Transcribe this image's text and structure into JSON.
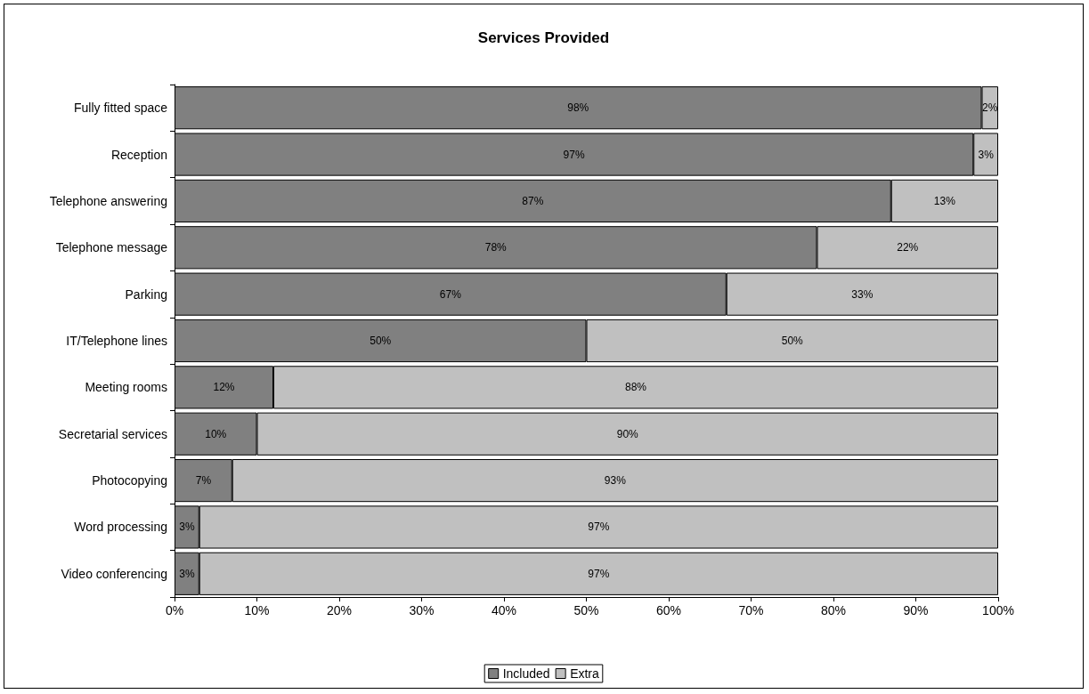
{
  "chart_data": {
    "type": "bar",
    "title": "Services Provided",
    "orientation": "horizontal",
    "stacked": true,
    "categories": [
      "Fully fitted space",
      "Reception",
      "Telephone answering",
      "Telephone message",
      "Parking",
      "IT/Telephone lines",
      "Meeting rooms",
      "Secretarial services",
      "Photocopying",
      "Word processing",
      "Video conferencing"
    ],
    "series": [
      {
        "name": "Included",
        "color": "#808080",
        "values": [
          98,
          97,
          87,
          78,
          67,
          50,
          12,
          10,
          7,
          3,
          3
        ],
        "value_labels": [
          "98%",
          "97%",
          "87%",
          "78%",
          "67%",
          "50%",
          "12%",
          "10%",
          "7%",
          "3%",
          "3%"
        ]
      },
      {
        "name": "Extra",
        "color": "#c0c0c0",
        "values": [
          2,
          3,
          13,
          22,
          33,
          50,
          88,
          90,
          93,
          97,
          97
        ],
        "value_labels": [
          "2%",
          "3%",
          "13%",
          "22%",
          "33%",
          "50%",
          "88%",
          "90%",
          "93%",
          "97%",
          "97%"
        ]
      }
    ],
    "xlim": [
      0,
      100
    ],
    "xticks": [
      {
        "value": 0,
        "label": "0%"
      },
      {
        "value": 10,
        "label": "10%"
      },
      {
        "value": 20,
        "label": "20%"
      },
      {
        "value": 30,
        "label": "30%"
      },
      {
        "value": 40,
        "label": "40%"
      },
      {
        "value": 50,
        "label": "50%"
      },
      {
        "value": 60,
        "label": "60%"
      },
      {
        "value": 70,
        "label": "70%"
      },
      {
        "value": 80,
        "label": "80%"
      },
      {
        "value": 90,
        "label": "90%"
      },
      {
        "value": 100,
        "label": "100%"
      }
    ],
    "grid": false,
    "legend": "bottom"
  }
}
